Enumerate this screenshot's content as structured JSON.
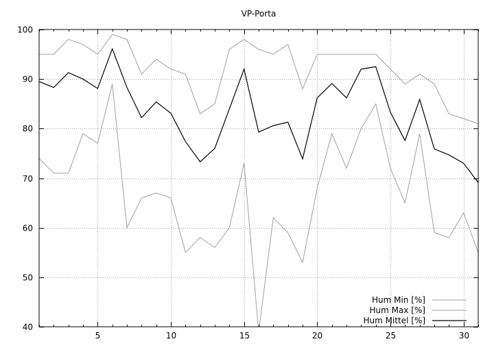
{
  "chart_data": {
    "type": "line",
    "title": "VP-Porta",
    "xlabel": "",
    "ylabel": "",
    "xlim": [
      1,
      31
    ],
    "ylim": [
      40,
      100
    ],
    "x_ticks": [
      5,
      10,
      15,
      20,
      25,
      30
    ],
    "y_ticks": [
      40,
      50,
      60,
      70,
      80,
      90,
      100
    ],
    "grid": true,
    "legend_position": "bottom-right",
    "x": [
      1,
      2,
      3,
      4,
      5,
      6,
      7,
      8,
      9,
      10,
      11,
      12,
      13,
      14,
      15,
      16,
      17,
      18,
      19,
      20,
      21,
      22,
      23,
      24,
      25,
      26,
      27,
      28,
      29,
      30,
      31
    ],
    "series": [
      {
        "name": "Hum Min [%]",
        "color": "#a0a0a0",
        "values": [
          74,
          71,
          71,
          79,
          77,
          89,
          60,
          66,
          67,
          66,
          55,
          58,
          56,
          60,
          73,
          39,
          62,
          59,
          53,
          68,
          79,
          72,
          80,
          85,
          72,
          65,
          79,
          59,
          58,
          63,
          55
        ]
      },
      {
        "name": "Hum Max [%]",
        "color": "#a0a0a0",
        "values": [
          95,
          95,
          98,
          97,
          95,
          99,
          98,
          91,
          94,
          92,
          91,
          83,
          85,
          96,
          98,
          96,
          95,
          97,
          88,
          95,
          95,
          95,
          95,
          95,
          92,
          89,
          91,
          89,
          83,
          82,
          81
        ]
      },
      {
        "name": "Hum Mittel [%]",
        "color": "#000000",
        "values": [
          89.5,
          88.3,
          91.3,
          90.0,
          88.1,
          96.1,
          88.3,
          82.2,
          85.4,
          83.1,
          77.4,
          73.3,
          76.0,
          84.0,
          92.0,
          79.3,
          80.6,
          81.3,
          73.9,
          86.2,
          89.1,
          86.2,
          92.0,
          92.5,
          83.3,
          77.6,
          85.9,
          75.9,
          74.7,
          73.0,
          69.1
        ]
      }
    ]
  }
}
